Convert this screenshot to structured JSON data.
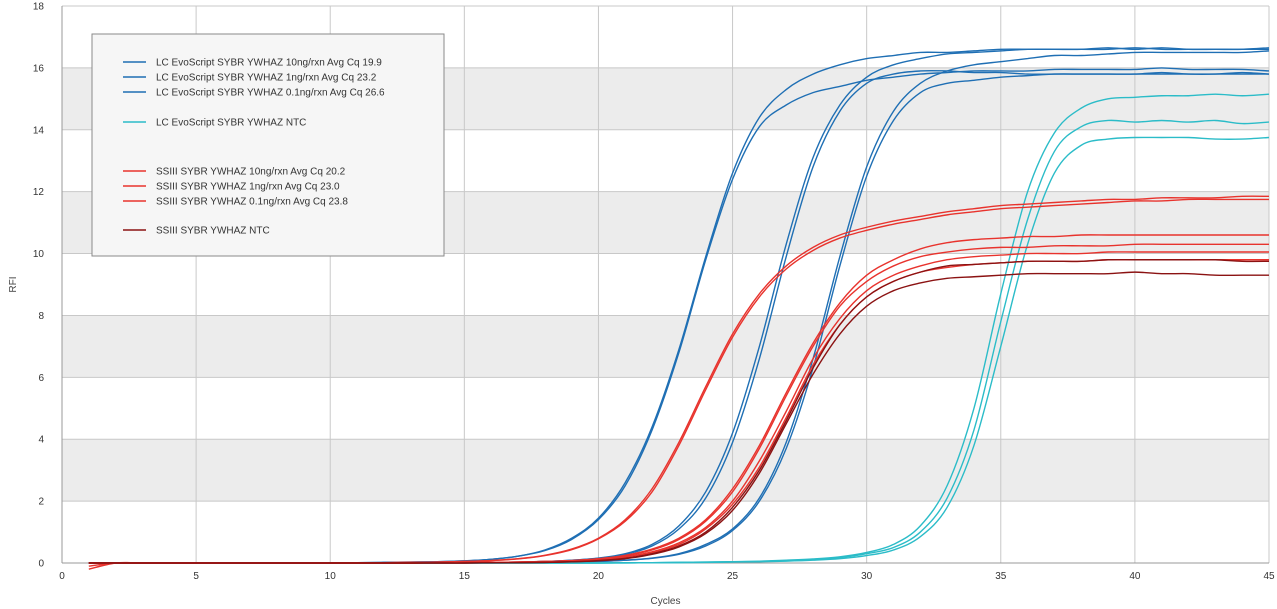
{
  "chart_data": {
    "type": "line",
    "title": "",
    "xlabel": "Cycles",
    "ylabel": "RFI",
    "xlim": [
      0,
      45
    ],
    "ylim": [
      0,
      18
    ],
    "x_ticks": [
      0,
      5,
      10,
      15,
      20,
      25,
      30,
      35,
      40,
      45
    ],
    "y_ticks": [
      0,
      2,
      4,
      6,
      8,
      10,
      12,
      14,
      16,
      18
    ],
    "grid": true,
    "banded_background": true,
    "legend_position": "top-left",
    "colors": {
      "evo_blue": "#1f6fb4",
      "evo_ntc": "#2bbcc8",
      "ssiii_red": "#e8332d",
      "ssiii_ntc": "#8b1212",
      "band": "#ececec",
      "grid": "#c8c8c8"
    },
    "legend": [
      {
        "label": "LC EvoScript SYBR YWHAZ 10ng/rxn Avg Cq 19.9",
        "color": "#1f6fb4"
      },
      {
        "label": "LC EvoScript SYBR YWHAZ 1ng/rxn Avg Cq 23.2",
        "color": "#1f6fb4"
      },
      {
        "label": "LC EvoScript SYBR YWHAZ 0.1ng/rxn Avg Cq 26.6",
        "color": "#1f6fb4"
      },
      {
        "label": "LC EvoScript SYBR YWHAZ NTC",
        "color": "#2bbcc8"
      },
      {
        "label": "SSIII SYBR YWHAZ 10ng/rxn Avg Cq 20.2",
        "color": "#e8332d"
      },
      {
        "label": "SSIII SYBR YWHAZ 1ng/rxn Avg Cq 23.0",
        "color": "#e8332d"
      },
      {
        "label": "SSIII SYBR YWHAZ 0.1ng/rxn Avg Cq 23.8",
        "color": "#e8332d"
      },
      {
        "label": "SSIII SYBR YWHAZ NTC",
        "color": "#8b1212"
      }
    ],
    "x": [
      1,
      2,
      3,
      4,
      5,
      6,
      7,
      8,
      9,
      10,
      11,
      12,
      13,
      14,
      15,
      16,
      17,
      18,
      19,
      20,
      21,
      22,
      23,
      24,
      25,
      26,
      27,
      28,
      29,
      30,
      31,
      32,
      33,
      34,
      35,
      36,
      37,
      38,
      39,
      40,
      41,
      42,
      43,
      44,
      45
    ],
    "series": [
      {
        "name": "LC EvoScript SYBR YWHAZ 10ng/rxn Avg Cq 19.9",
        "color": "#1f6fb4",
        "values": [
          0.0,
          0.0,
          0.0,
          0.0,
          0.0,
          0.0,
          0.0,
          0.0,
          0.0,
          0.01,
          0.01,
          0.02,
          0.03,
          0.04,
          0.07,
          0.12,
          0.22,
          0.42,
          0.8,
          1.45,
          2.6,
          4.4,
          6.9,
          9.9,
          12.6,
          14.4,
          15.3,
          15.8,
          16.1,
          16.3,
          16.4,
          16.5,
          16.5,
          16.55,
          16.6,
          16.6,
          16.6,
          16.6,
          16.6,
          16.65,
          16.6,
          16.6,
          16.6,
          16.6,
          16.6
        ]
      },
      {
        "name": "LC EvoScript SYBR YWHAZ 10ng/rxn Avg Cq 19.9",
        "color": "#1f6fb4",
        "values": [
          0.0,
          0.0,
          0.0,
          0.0,
          0.0,
          0.0,
          0.0,
          0.0,
          0.0,
          0.01,
          0.01,
          0.02,
          0.03,
          0.04,
          0.07,
          0.12,
          0.22,
          0.4,
          0.76,
          1.4,
          2.5,
          4.3,
          6.8,
          9.8,
          12.4,
          14.1,
          14.8,
          15.2,
          15.4,
          15.6,
          15.7,
          15.8,
          15.85,
          15.9,
          15.9,
          15.9,
          15.95,
          15.95,
          15.95,
          15.95,
          16.0,
          15.95,
          15.95,
          15.95,
          15.9
        ]
      },
      {
        "name": "LC EvoScript SYBR YWHAZ 1ng/rxn Avg Cq 23.2",
        "color": "#1f6fb4",
        "values": [
          0.0,
          0.0,
          0.0,
          0.0,
          0.0,
          0.0,
          0.0,
          0.0,
          0.0,
          0.0,
          0.0,
          0.0,
          0.0,
          0.01,
          0.01,
          0.02,
          0.03,
          0.05,
          0.09,
          0.16,
          0.3,
          0.6,
          1.2,
          2.3,
          4.2,
          7.0,
          10.3,
          13.1,
          14.8,
          15.7,
          16.1,
          16.3,
          16.45,
          16.5,
          16.55,
          16.6,
          16.6,
          16.6,
          16.65,
          16.6,
          16.65,
          16.6,
          16.6,
          16.6,
          16.65
        ]
      },
      {
        "name": "LC EvoScript SYBR YWHAZ 1ng/rxn Avg Cq 23.2",
        "color": "#1f6fb4",
        "values": [
          0.0,
          0.0,
          0.0,
          0.0,
          0.0,
          0.0,
          0.0,
          0.0,
          0.0,
          0.0,
          0.0,
          0.0,
          0.0,
          0.01,
          0.01,
          0.02,
          0.03,
          0.05,
          0.09,
          0.15,
          0.28,
          0.55,
          1.1,
          2.1,
          3.9,
          6.6,
          9.9,
          12.8,
          14.6,
          15.5,
          15.8,
          15.9,
          15.9,
          15.85,
          15.85,
          15.8,
          15.8,
          15.8,
          15.8,
          15.8,
          15.85,
          15.8,
          15.8,
          15.85,
          15.8
        ]
      },
      {
        "name": "LC EvoScript SYBR YWHAZ 0.1ng/rxn Avg Cq 26.6",
        "color": "#1f6fb4",
        "values": [
          0.0,
          0.0,
          0.0,
          0.0,
          0.0,
          0.0,
          0.0,
          0.0,
          0.0,
          0.0,
          0.0,
          0.0,
          0.0,
          0.0,
          0.0,
          0.0,
          0.01,
          0.02,
          0.03,
          0.05,
          0.09,
          0.16,
          0.3,
          0.6,
          1.1,
          2.1,
          3.9,
          6.6,
          9.9,
          12.8,
          14.6,
          15.5,
          15.9,
          16.1,
          16.2,
          16.3,
          16.4,
          16.4,
          16.45,
          16.5,
          16.5,
          16.5,
          16.5,
          16.5,
          16.55
        ]
      },
      {
        "name": "LC EvoScript SYBR YWHAZ 0.1ng/rxn Avg Cq 26.6",
        "color": "#1f6fb4",
        "values": [
          0.0,
          0.0,
          0.0,
          0.0,
          0.0,
          0.0,
          0.0,
          0.0,
          0.0,
          0.0,
          0.0,
          0.0,
          0.0,
          0.0,
          0.0,
          0.0,
          0.01,
          0.02,
          0.03,
          0.05,
          0.09,
          0.15,
          0.28,
          0.55,
          1.05,
          2.0,
          3.7,
          6.3,
          9.6,
          12.5,
          14.3,
          15.2,
          15.5,
          15.6,
          15.7,
          15.75,
          15.8,
          15.8,
          15.8,
          15.8,
          15.8,
          15.8,
          15.8,
          15.8,
          15.8
        ]
      },
      {
        "name": "LC EvoScript SYBR YWHAZ NTC",
        "color": "#2bbcc8",
        "values": [
          0.0,
          0.0,
          0.0,
          0.0,
          0.0,
          0.0,
          0.0,
          0.0,
          0.0,
          0.0,
          0.0,
          0.0,
          0.0,
          0.0,
          0.0,
          0.0,
          0.0,
          0.0,
          0.0,
          0.0,
          0.01,
          0.01,
          0.02,
          0.03,
          0.04,
          0.06,
          0.09,
          0.13,
          0.2,
          0.34,
          0.6,
          1.2,
          2.5,
          5.0,
          8.7,
          12.0,
          13.9,
          14.7,
          15.0,
          15.05,
          15.1,
          15.1,
          15.15,
          15.1,
          15.15
        ]
      },
      {
        "name": "LC EvoScript SYBR YWHAZ NTC",
        "color": "#2bbcc8",
        "values": [
          0.0,
          0.0,
          0.0,
          0.0,
          0.0,
          0.0,
          0.0,
          0.0,
          0.0,
          0.0,
          0.0,
          0.0,
          0.0,
          0.0,
          0.0,
          0.0,
          0.0,
          0.0,
          0.0,
          0.0,
          0.01,
          0.01,
          0.02,
          0.03,
          0.04,
          0.05,
          0.08,
          0.11,
          0.17,
          0.3,
          0.5,
          1.0,
          2.1,
          4.3,
          7.8,
          11.1,
          13.3,
          14.1,
          14.3,
          14.25,
          14.3,
          14.25,
          14.3,
          14.2,
          14.25
        ]
      },
      {
        "name": "LC EvoScript SYBR YWHAZ NTC",
        "color": "#2bbcc8",
        "values": [
          0.0,
          0.0,
          0.0,
          0.0,
          0.0,
          0.0,
          0.0,
          0.0,
          0.0,
          0.0,
          0.0,
          0.0,
          0.0,
          0.0,
          0.0,
          0.0,
          0.0,
          0.0,
          0.0,
          0.0,
          0.0,
          0.01,
          0.01,
          0.02,
          0.03,
          0.04,
          0.06,
          0.09,
          0.14,
          0.24,
          0.42,
          0.85,
          1.8,
          3.8,
          7.0,
          10.3,
          12.6,
          13.5,
          13.7,
          13.75,
          13.75,
          13.75,
          13.7,
          13.7,
          13.75
        ]
      },
      {
        "name": "SSIII SYBR YWHAZ 10ng/rxn Avg Cq 20.2",
        "color": "#e8332d",
        "values": [
          -0.1,
          0.0,
          0.0,
          0.0,
          0.0,
          0.0,
          0.0,
          0.0,
          0.0,
          0.0,
          0.01,
          0.01,
          0.02,
          0.03,
          0.05,
          0.08,
          0.14,
          0.25,
          0.45,
          0.8,
          1.4,
          2.4,
          3.9,
          5.7,
          7.4,
          8.7,
          9.6,
          10.2,
          10.6,
          10.85,
          11.05,
          11.2,
          11.35,
          11.45,
          11.55,
          11.6,
          11.65,
          11.7,
          11.75,
          11.75,
          11.8,
          11.8,
          11.8,
          11.85,
          11.85
        ]
      },
      {
        "name": "SSIII SYBR YWHAZ 10ng/rxn Avg Cq 20.2",
        "color": "#e8332d",
        "values": [
          -0.2,
          0.0,
          0.0,
          0.0,
          0.0,
          0.0,
          0.0,
          0.0,
          0.0,
          0.0,
          0.01,
          0.01,
          0.02,
          0.03,
          0.05,
          0.08,
          0.13,
          0.24,
          0.43,
          0.78,
          1.35,
          2.3,
          3.8,
          5.6,
          7.3,
          8.6,
          9.5,
          10.1,
          10.5,
          10.75,
          10.95,
          11.1,
          11.25,
          11.35,
          11.45,
          11.5,
          11.55,
          11.6,
          11.65,
          11.7,
          11.7,
          11.75,
          11.75,
          11.75,
          11.75
        ]
      },
      {
        "name": "SSIII SYBR YWHAZ 1ng/rxn Avg Cq 23.0",
        "color": "#e8332d",
        "values": [
          0.0,
          0.0,
          0.0,
          0.0,
          0.0,
          0.0,
          0.0,
          0.0,
          0.0,
          0.0,
          0.0,
          0.0,
          0.0,
          0.01,
          0.01,
          0.02,
          0.03,
          0.05,
          0.08,
          0.14,
          0.25,
          0.45,
          0.8,
          1.4,
          2.4,
          3.8,
          5.5,
          7.1,
          8.4,
          9.3,
          9.8,
          10.15,
          10.35,
          10.45,
          10.5,
          10.55,
          10.55,
          10.6,
          10.6,
          10.6,
          10.6,
          10.6,
          10.6,
          10.6,
          10.6
        ]
      },
      {
        "name": "SSIII SYBR YWHAZ 1ng/rxn Avg Cq 23.0",
        "color": "#e8332d",
        "values": [
          0.0,
          0.0,
          0.0,
          0.0,
          0.0,
          0.0,
          0.0,
          0.0,
          0.0,
          0.0,
          0.0,
          0.0,
          0.0,
          0.01,
          0.01,
          0.02,
          0.03,
          0.05,
          0.08,
          0.13,
          0.23,
          0.42,
          0.76,
          1.35,
          2.3,
          3.7,
          5.4,
          7.0,
          8.3,
          9.1,
          9.6,
          9.9,
          10.05,
          10.15,
          10.2,
          10.2,
          10.25,
          10.25,
          10.25,
          10.3,
          10.3,
          10.3,
          10.3,
          10.3,
          10.3
        ]
      },
      {
        "name": "SSIII SYBR YWHAZ 0.1ng/rxn Avg Cq 23.8",
        "color": "#e8332d",
        "values": [
          0.0,
          0.0,
          0.0,
          0.0,
          0.0,
          0.0,
          0.0,
          0.0,
          0.0,
          0.0,
          0.0,
          0.0,
          0.0,
          0.01,
          0.01,
          0.02,
          0.03,
          0.05,
          0.07,
          0.12,
          0.2,
          0.36,
          0.65,
          1.15,
          2.0,
          3.3,
          4.9,
          6.6,
          7.9,
          8.8,
          9.3,
          9.6,
          9.8,
          9.9,
          9.95,
          10.0,
          10.0,
          10.0,
          10.05,
          10.05,
          10.05,
          10.05,
          10.05,
          10.05,
          10.05
        ]
      },
      {
        "name": "SSIII SYBR YWHAZ 0.1ng/rxn Avg Cq 23.8",
        "color": "#e8332d",
        "values": [
          0.0,
          0.0,
          0.0,
          0.0,
          0.0,
          0.0,
          0.0,
          0.0,
          0.0,
          0.0,
          0.0,
          0.0,
          0.0,
          0.01,
          0.01,
          0.02,
          0.03,
          0.04,
          0.07,
          0.11,
          0.19,
          0.34,
          0.6,
          1.1,
          1.9,
          3.1,
          4.7,
          6.4,
          7.7,
          8.6,
          9.1,
          9.4,
          9.55,
          9.65,
          9.7,
          9.75,
          9.75,
          9.75,
          9.8,
          9.8,
          9.8,
          9.8,
          9.8,
          9.8,
          9.8
        ]
      },
      {
        "name": "SSIII SYBR YWHAZ NTC",
        "color": "#8b1212",
        "values": [
          0.0,
          0.0,
          0.0,
          0.0,
          0.0,
          0.0,
          0.0,
          0.0,
          0.0,
          0.0,
          0.0,
          0.0,
          0.0,
          0.0,
          0.0,
          0.01,
          0.01,
          0.02,
          0.04,
          0.08,
          0.15,
          0.3,
          0.55,
          1.0,
          1.8,
          3.0,
          4.6,
          6.3,
          7.7,
          8.6,
          9.1,
          9.4,
          9.6,
          9.65,
          9.7,
          9.75,
          9.75,
          9.75,
          9.8,
          9.8,
          9.8,
          9.8,
          9.8,
          9.75,
          9.75
        ]
      },
      {
        "name": "SSIII SYBR YWHAZ NTC",
        "color": "#8b1212",
        "values": [
          0.0,
          0.0,
          0.0,
          0.0,
          0.0,
          0.0,
          0.0,
          0.0,
          0.0,
          0.0,
          0.0,
          0.0,
          0.0,
          0.0,
          0.0,
          0.01,
          0.01,
          0.02,
          0.04,
          0.07,
          0.14,
          0.28,
          0.52,
          0.95,
          1.7,
          2.9,
          4.5,
          6.1,
          7.4,
          8.3,
          8.8,
          9.05,
          9.2,
          9.25,
          9.3,
          9.35,
          9.35,
          9.35,
          9.35,
          9.4,
          9.35,
          9.35,
          9.3,
          9.3,
          9.3
        ]
      }
    ]
  }
}
